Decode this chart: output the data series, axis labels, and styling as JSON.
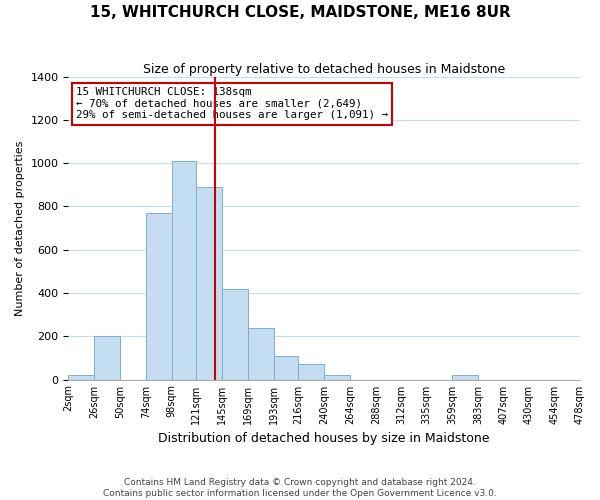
{
  "title": "15, WHITCHURCH CLOSE, MAIDSTONE, ME16 8UR",
  "subtitle": "Size of property relative to detached houses in Maidstone",
  "xlabel": "Distribution of detached houses by size in Maidstone",
  "ylabel": "Number of detached properties",
  "bar_color": "#c5ddf0",
  "bar_edge_color": "#7ab0d4",
  "background_color": "#ffffff",
  "grid_color": "#c8dcea",
  "vline_x": 138,
  "vline_color": "#cc0000",
  "annotation_lines": [
    "15 WHITCHURCH CLOSE: 138sqm",
    "← 70% of detached houses are smaller (2,649)",
    "29% of semi-detached houses are larger (1,091) →"
  ],
  "annotation_box_edge": "#cc0000",
  "bin_edges": [
    2,
    26,
    50,
    74,
    98,
    121,
    145,
    169,
    193,
    216,
    240,
    264,
    288,
    312,
    335,
    359,
    383,
    407,
    430,
    454,
    478
  ],
  "bin_counts": [
    20,
    200,
    0,
    770,
    1010,
    890,
    420,
    240,
    110,
    70,
    20,
    0,
    0,
    0,
    0,
    20,
    0,
    0,
    0,
    0
  ],
  "ylim": [
    0,
    1400
  ],
  "yticks": [
    0,
    200,
    400,
    600,
    800,
    1000,
    1200,
    1400
  ],
  "footer_text": "Contains HM Land Registry data © Crown copyright and database right 2024.\nContains public sector information licensed under the Open Government Licence v3.0.",
  "tick_labels": [
    "2sqm",
    "26sqm",
    "50sqm",
    "74sqm",
    "98sqm",
    "121sqm",
    "145sqm",
    "169sqm",
    "193sqm",
    "216sqm",
    "240sqm",
    "264sqm",
    "288sqm",
    "312sqm",
    "335sqm",
    "359sqm",
    "383sqm",
    "407sqm",
    "430sqm",
    "454sqm",
    "478sqm"
  ]
}
